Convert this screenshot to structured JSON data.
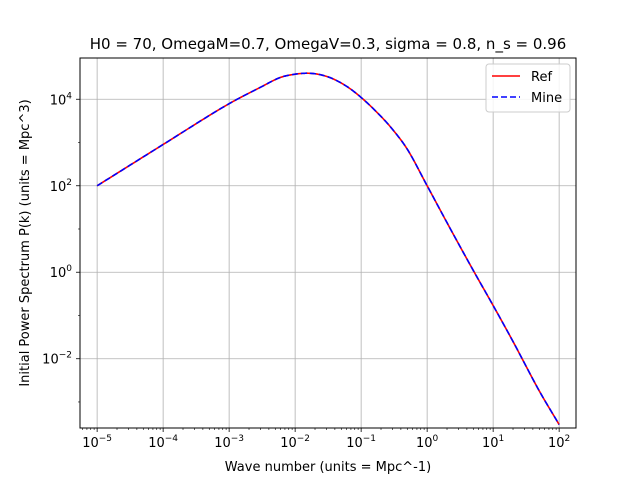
{
  "chart_data": {
    "type": "line",
    "title": "H0 = 70, OmegaM=0.7, OmegaV=0.3, sigma = 0.8, n_s = 0.96",
    "xlabel": "Wave number (units = Mpc^-1)",
    "ylabel": "Initial Power Spectrum P(k) (units = Mpc^3)",
    "xscale": "log",
    "yscale": "log",
    "xlim": [
      5.5e-06,
      180
    ],
    "ylim": [
      0.00025,
      90000
    ],
    "grid": true,
    "legend_position": "top-right",
    "x_ticks": [
      {
        "exp": -5,
        "label_base": "10",
        "label_exp": "−5"
      },
      {
        "exp": -4,
        "label_base": "10",
        "label_exp": "−4"
      },
      {
        "exp": -3,
        "label_base": "10",
        "label_exp": "−3"
      },
      {
        "exp": -2,
        "label_base": "10",
        "label_exp": "−2"
      },
      {
        "exp": -1,
        "label_base": "10",
        "label_exp": "−1"
      },
      {
        "exp": 0,
        "label_base": "10",
        "label_exp": "0"
      },
      {
        "exp": 1,
        "label_base": "10",
        "label_exp": "1"
      },
      {
        "exp": 2,
        "label_base": "10",
        "label_exp": "2"
      }
    ],
    "y_ticks": [
      {
        "exp": -2,
        "label_base": "10",
        "label_exp": "−2"
      },
      {
        "exp": 0,
        "label_base": "10",
        "label_exp": "0"
      },
      {
        "exp": 2,
        "label_base": "10",
        "label_exp": "2"
      },
      {
        "exp": 4,
        "label_base": "10",
        "label_exp": "4"
      }
    ],
    "series": [
      {
        "name": "Ref",
        "color": "#ff0000",
        "style": "solid",
        "x": [
          1e-05,
          0.0001,
          0.001,
          0.003,
          0.006,
          0.01,
          0.015,
          0.022,
          0.035,
          0.06,
          0.1,
          0.2,
          0.3,
          0.5,
          1,
          2,
          5,
          10,
          20,
          50,
          100
        ],
        "y": [
          100,
          900,
          7900,
          19000,
          32000,
          38000,
          40000,
          38000,
          31000,
          20000,
          11000,
          4000,
          2000,
          700,
          100,
          14,
          1.1,
          0.17,
          0.025,
          0.0018,
          0.0003
        ]
      },
      {
        "name": "Mine",
        "color": "#0000ff",
        "style": "dashed",
        "x": [
          1e-05,
          0.0001,
          0.001,
          0.003,
          0.006,
          0.01,
          0.015,
          0.022,
          0.035,
          0.06,
          0.1,
          0.2,
          0.3,
          0.5,
          1,
          2,
          5,
          10,
          20,
          50,
          100
        ],
        "y": [
          100,
          900,
          7900,
          19000,
          32000,
          38000,
          40000,
          38000,
          31000,
          20000,
          11000,
          4000,
          2000,
          700,
          100,
          14,
          1.1,
          0.17,
          0.025,
          0.0018,
          0.0003
        ]
      }
    ]
  }
}
